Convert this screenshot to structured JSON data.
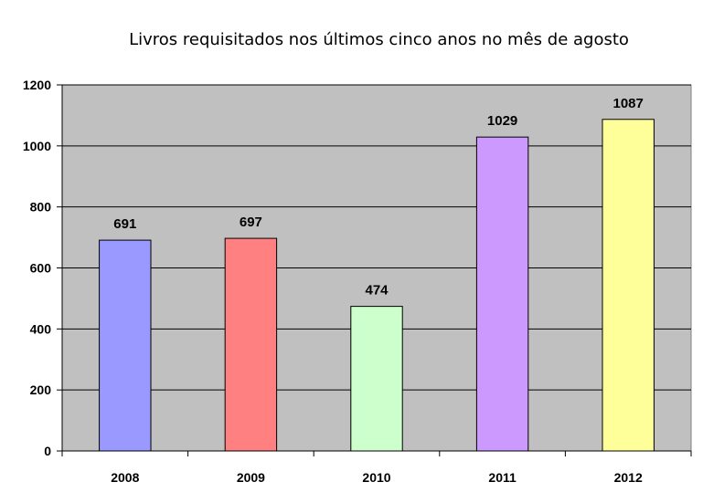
{
  "chart_data": {
    "type": "bar",
    "title": "Livros requisitados nos últimos cinco anos no mês de agosto",
    "categories": [
      "2008",
      "2009",
      "2010",
      "2011",
      "2012"
    ],
    "values": [
      691,
      697,
      474,
      1029,
      1087
    ],
    "data_labels": [
      "691",
      "697",
      "474",
      "1029",
      "1087"
    ],
    "bar_colors": [
      "#9999ff",
      "#ff8080",
      "#ccffcc",
      "#cc99ff",
      "#ffff99"
    ],
    "plot_background": "#c0c0c0",
    "ylim": [
      0,
      1200
    ],
    "yticks": [
      0,
      200,
      400,
      600,
      800,
      1000,
      1200
    ],
    "ytick_labels": [
      "0",
      "200",
      "400",
      "600",
      "800",
      "1000",
      "1200"
    ],
    "xlabel": "",
    "ylabel": "",
    "grid": true,
    "legend": false
  }
}
